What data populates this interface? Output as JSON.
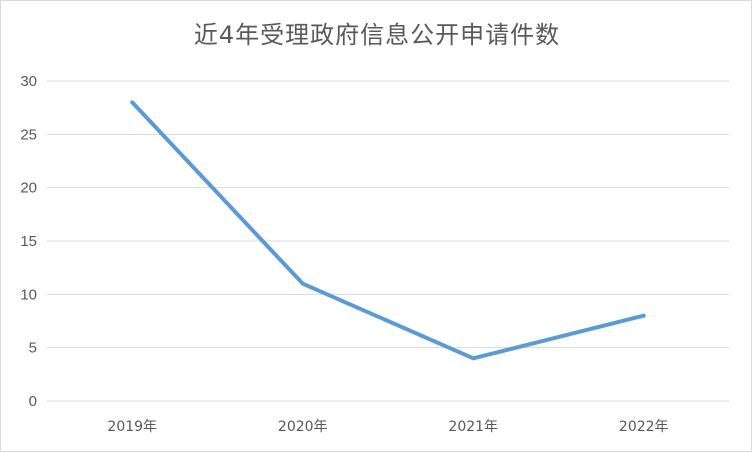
{
  "chart_data": {
    "type": "line",
    "title": "近4年受理政府信息公开申请件数",
    "categories": [
      "2019年",
      "2020年",
      "2021年",
      "2022年"
    ],
    "series": [
      {
        "values": [
          28,
          11,
          4,
          8
        ]
      }
    ],
    "xlabel": "",
    "ylabel": "",
    "ylim": [
      0,
      30
    ],
    "yticks": [
      0,
      5,
      10,
      15,
      20,
      25,
      30
    ],
    "grid": true,
    "legend": "none",
    "colors": {
      "line": "#5b9bd5",
      "grid": "#d9d9d9",
      "text": "#595959"
    }
  }
}
